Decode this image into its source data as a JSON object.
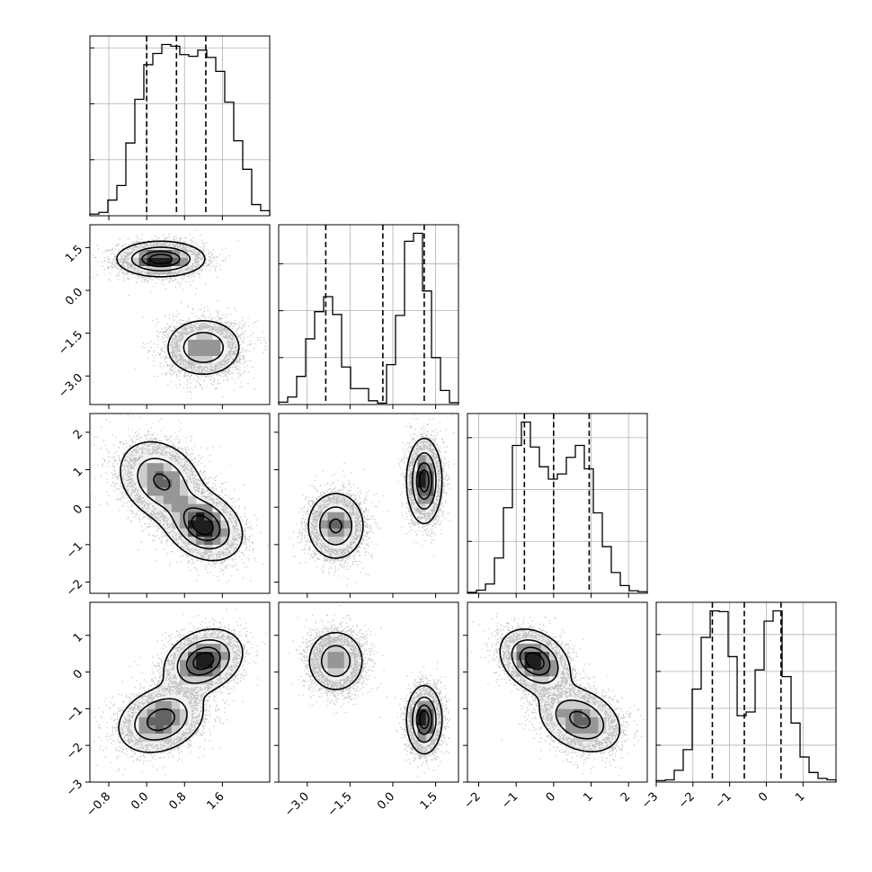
{
  "chart_data": {
    "type": "corner",
    "n_params": 4,
    "parameters": [
      {
        "range": [
          -1.2,
          2.6
        ],
        "ticks": [
          -0.8,
          0.0,
          0.8,
          1.6
        ],
        "tick_labels": [
          "−0.8",
          "0.0",
          "0.8",
          "1.6"
        ]
      },
      {
        "range": [
          -4.0,
          2.3
        ],
        "ticks": [
          -3.0,
          -1.5,
          0.0,
          1.5
        ],
        "tick_labels": [
          "−3.0",
          "−1.5",
          "0.0",
          "1.5"
        ]
      },
      {
        "range": [
          -2.3,
          2.5
        ],
        "ticks": [
          -2,
          -1,
          0,
          1,
          2
        ],
        "tick_labels": [
          "−2",
          "−1",
          "0",
          "1",
          "2"
        ]
      },
      {
        "range": [
          -3.0,
          1.9
        ],
        "ticks": [
          -3,
          -2,
          -1,
          0,
          1
        ],
        "tick_labels": [
          "−3",
          "−2",
          "−1",
          "0",
          "1"
        ]
      }
    ],
    "quantiles": [
      [
        0.0,
        0.63,
        1.25
      ],
      [
        -2.35,
        -0.35,
        1.1
      ],
      [
        -0.78,
        0.0,
        0.95
      ],
      [
        -1.47,
        -0.6,
        0.4
      ]
    ],
    "histograms": [
      {
        "edges_start": -1.2,
        "bin_width": 0.19,
        "counts": [
          0.3,
          0.6,
          2.8,
          5.4,
          13.0,
          20.8,
          27.0,
          29.0,
          30.6,
          30.3,
          28.8,
          28.5,
          29.6,
          28.3,
          25.8,
          20.3,
          13.4,
          8.3,
          2.0,
          0.9
        ]
      },
      {
        "edges_start": -4.0,
        "bin_width": 0.315,
        "counts": [
          0.5,
          1.6,
          6.0,
          14.0,
          19.8,
          23.0,
          19.2,
          8.0,
          3.4,
          3.4,
          0.8,
          0.3,
          8.5,
          19.0,
          34.8,
          36.5,
          24.2,
          10.0,
          3.0,
          0.4
        ]
      },
      {
        "edges_start": -2.3,
        "bin_width": 0.24,
        "counts": [
          0.2,
          0.6,
          1.8,
          6.8,
          16.5,
          28.5,
          33.0,
          28.2,
          24.4,
          22.0,
          23.0,
          26.2,
          28.5,
          24.0,
          15.5,
          9.0,
          4.0,
          1.5,
          0.5,
          0.3
        ]
      },
      {
        "edges_start": -3.0,
        "bin_width": 0.245,
        "counts": [
          0.2,
          0.3,
          1.6,
          4.4,
          12.6,
          19.6,
          23.2,
          23.1,
          17.0,
          9.0,
          9.5,
          15.2,
          21.8,
          23.2,
          14.3,
          8.0,
          3.4,
          1.3,
          0.5,
          0.3
        ]
      }
    ],
    "modes": [
      {
        "center": [
          0.3,
          1.1,
          0.7,
          -1.3
        ],
        "sigma": [
          0.45,
          0.3,
          0.55,
          0.45
        ]
      },
      {
        "center": [
          1.2,
          -2.0,
          -0.5,
          0.3
        ],
        "sigma": [
          0.4,
          0.5,
          0.45,
          0.42
        ]
      }
    ],
    "correlations": {
      "0-2": -0.25,
      "0-3": 0.25,
      "2-3": -0.3
    },
    "contour_levels": [
      0.118,
      0.393,
      0.675,
      0.865
    ],
    "samples_per_mode": 3500
  }
}
